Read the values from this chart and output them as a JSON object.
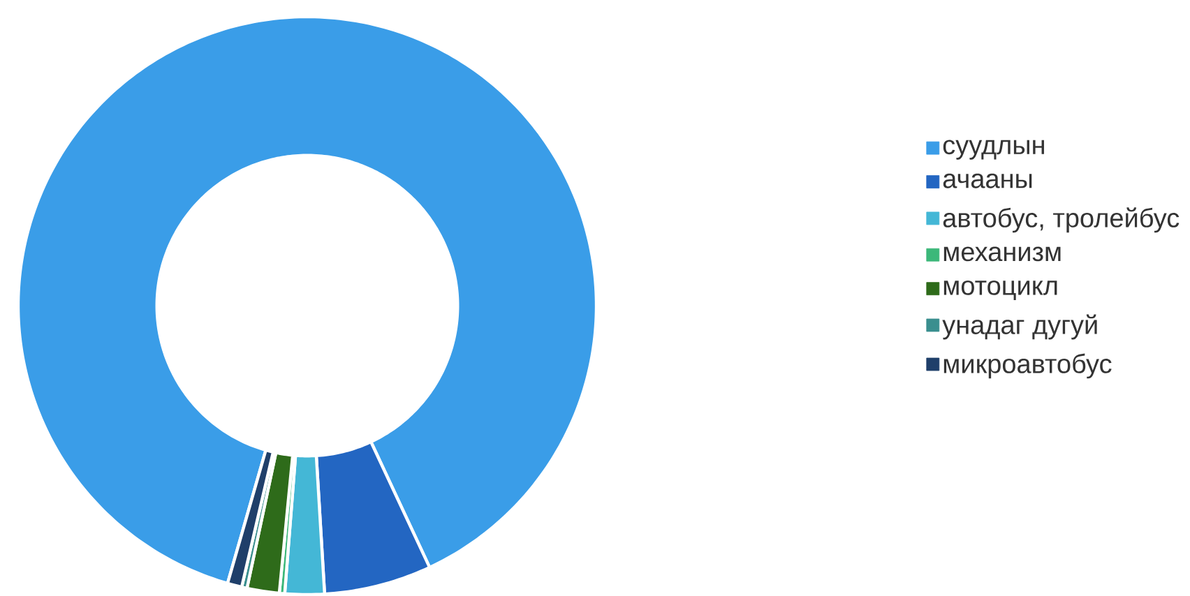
{
  "chart_data": {
    "type": "donut",
    "categories": [
      "суудлын",
      "ачааны",
      "автобус, тролейбус",
      "механизм",
      "мотоцикл",
      "унадаг дугуй",
      "микроавтобус"
    ],
    "values": [
      88.6,
      6.0,
      2.2,
      0.3,
      1.8,
      0.3,
      0.8
    ],
    "colors": [
      "#3a9de8",
      "#2366c2",
      "#44b7d6",
      "#3cb87a",
      "#2e6b1a",
      "#3a8f8f",
      "#1f3f6a"
    ],
    "legend": "right"
  }
}
